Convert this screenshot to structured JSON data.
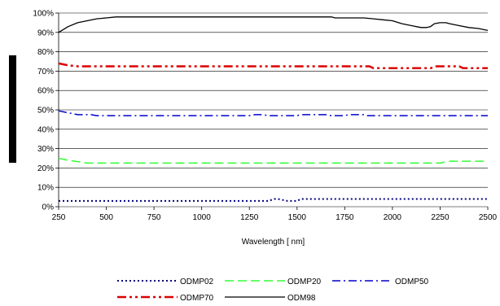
{
  "chart_data": {
    "type": "line",
    "title": "",
    "xlabel": "Wavelength [ nm]",
    "ylabel": "",
    "xlim": [
      250,
      2500
    ],
    "ylim": [
      0,
      100
    ],
    "x_ticks": [
      250,
      500,
      750,
      1000,
      1250,
      1500,
      1750,
      2000,
      2250,
      2500
    ],
    "x_tick_labels": [
      "250",
      "500",
      "750",
      "1000",
      "1250",
      "1500",
      "1750",
      "2000",
      "2250",
      "2500"
    ],
    "y_ticks": [
      0,
      10,
      20,
      30,
      40,
      50,
      60,
      70,
      80,
      90,
      100
    ],
    "y_tick_labels": [
      "0%",
      "10%",
      "20%",
      "30%",
      "40%",
      "50%",
      "60%",
      "70%",
      "80%",
      "90%",
      "100%"
    ],
    "grid": "horizontal",
    "legend_position": "bottom",
    "series": [
      {
        "name": "ODMP02",
        "color": "#000080",
        "dash": "dotted",
        "width": 2,
        "x": [
          250,
          1350,
          1380,
          1400,
          1450,
          1500,
          1520,
          2500
        ],
        "y": [
          3,
          3,
          4,
          4,
          3,
          3,
          4,
          4
        ]
      },
      {
        "name": "ODMP20",
        "color": "#33ff33",
        "dash": "dash",
        "width": 1.5,
        "x": [
          250,
          300,
          400,
          500,
          1000,
          1500,
          2000,
          2250,
          2290,
          2500
        ],
        "y": [
          25,
          24,
          22.5,
          22.5,
          22.5,
          22.5,
          22.5,
          22.5,
          23.5,
          23.5
        ],
        "note_width": 1
      },
      {
        "name": "ODMP50",
        "color": "#0000cc",
        "dash": "dashdot",
        "width": 1.5,
        "x": [
          250,
          300,
          350,
          420,
          450,
          1000,
          1250,
          1280,
          1320,
          1350,
          1380,
          1500,
          1520,
          1650,
          1680,
          1750,
          1770,
          1850,
          1870,
          2500
        ],
        "y": [
          49.5,
          48.5,
          47.5,
          47.5,
          47,
          47,
          47,
          47.5,
          47.5,
          47,
          47,
          47,
          47.5,
          47.5,
          47,
          47,
          47.5,
          47.5,
          47,
          47
        ]
      },
      {
        "name": "ODMP70",
        "color": "#dd0000",
        "dash": "dashdotdot",
        "width": 2.5,
        "x": [
          250,
          300,
          350,
          500,
          1000,
          1500,
          1880,
          1900,
          2200,
          2230,
          2350,
          2370,
          2500
        ],
        "y": [
          74,
          73,
          72.5,
          72.5,
          72.5,
          72.5,
          72.5,
          71.5,
          71.5,
          72.5,
          72.5,
          71.5,
          71.5
        ]
      },
      {
        "name": "ODM98",
        "color": "#000000",
        "dash": "solid",
        "width": 1.3,
        "x": [
          250,
          300,
          350,
          400,
          450,
          500,
          550,
          1000,
          1500,
          1680,
          1700,
          1850,
          1900,
          1950,
          2000,
          2050,
          2100,
          2150,
          2180,
          2200,
          2220,
          2250,
          2280,
          2300,
          2350,
          2400,
          2450,
          2500
        ],
        "y": [
          90,
          93,
          95,
          96,
          97,
          97.5,
          98,
          98,
          98,
          98,
          97.5,
          97.5,
          97,
          96.5,
          96,
          94.5,
          93.5,
          92.5,
          92.5,
          93,
          94.5,
          95,
          95,
          94.5,
          93.5,
          92.5,
          92,
          91
        ]
      }
    ]
  }
}
